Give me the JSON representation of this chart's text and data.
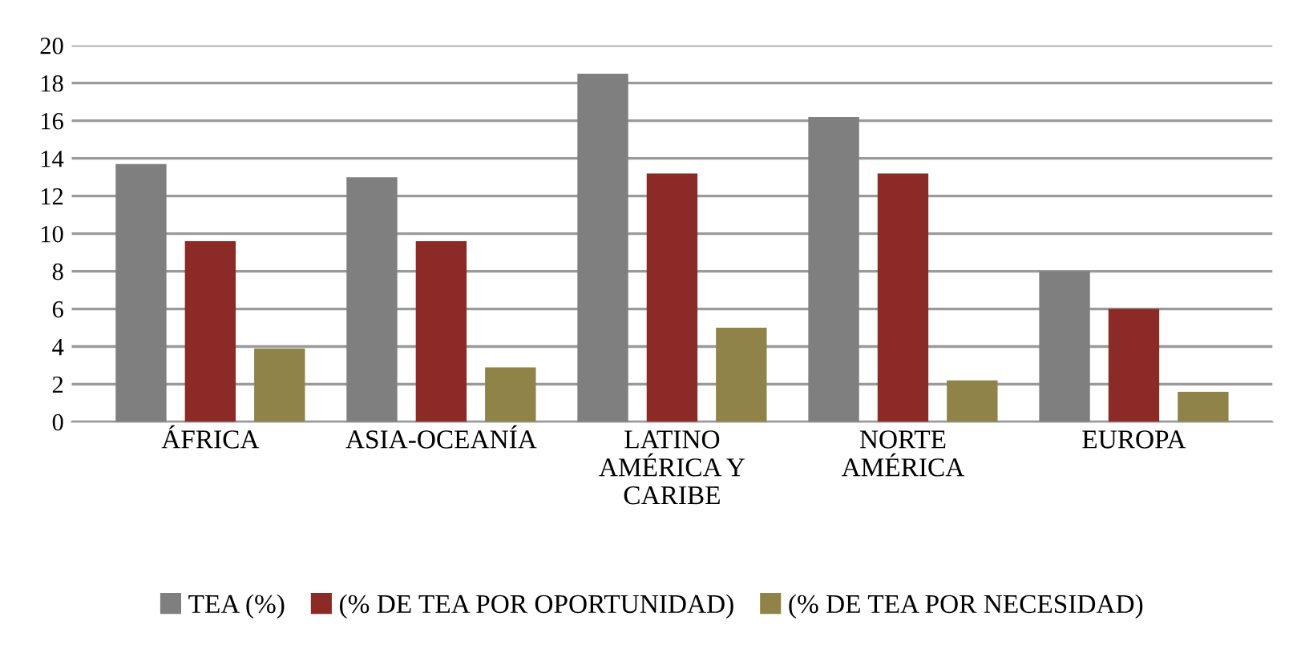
{
  "chart_data": {
    "type": "bar",
    "categories": [
      "ÁFRICA",
      "ASIA-OCEANÍA",
      "LATINO\nAMÉRICA Y\nCARIBE",
      "NORTE\nAMÉRICA",
      "EUROPA"
    ],
    "series": [
      {
        "name": "TEA (%)",
        "color": "#7f7f7f",
        "values": [
          13.7,
          13.0,
          18.5,
          16.2,
          8.0
        ]
      },
      {
        "name": "(% DE TEA POR OPORTUNIDAD)",
        "color": "#8b2a26",
        "values": [
          9.6,
          9.6,
          13.2,
          13.2,
          6.0
        ]
      },
      {
        "name": "(% DE TEA POR NECESIDAD)",
        "color": "#8f8347",
        "values": [
          3.9,
          2.9,
          5.0,
          2.2,
          1.6
        ]
      }
    ],
    "ylim": [
      0,
      20
    ],
    "yticks": [
      0,
      2,
      4,
      6,
      8,
      10,
      12,
      14,
      16,
      18,
      20
    ],
    "grid": "y",
    "legend": "bottom"
  }
}
